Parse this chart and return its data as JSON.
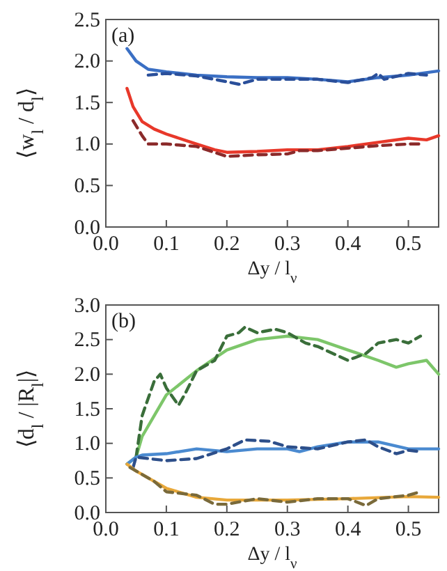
{
  "chart_data": [
    {
      "type": "line",
      "ylabel": "⟨w$_{l}$ / d$_{l}$⟩",
      "xlabel": "Δy / l$_{ν}$",
      "annotations": [
        "(a)"
      ],
      "xlim": [
        0,
        0.55
      ],
      "xticks": [
        {
          "value": 0,
          "label": "0.0"
        },
        0.1,
        0.2,
        0.3,
        0.4,
        0.5
      ],
      "ylim": [
        0,
        2.5
      ],
      "yticks": [
        {
          "value": 0,
          "label": "0.0"
        },
        0.5,
        {
          "value": 1,
          "label": "1.0"
        },
        1.5,
        {
          "value": 2,
          "label": "2.0"
        },
        2.5
      ],
      "grid": false,
      "series": [
        {
          "color": "#3a6fc4",
          "line_style": "solid",
          "x": [
            0.035,
            0.05,
            0.07,
            0.1,
            0.15,
            0.2,
            0.25,
            0.3,
            0.35,
            0.4,
            0.45,
            0.5,
            0.55
          ],
          "values": [
            2.15,
            2.0,
            1.9,
            1.87,
            1.83,
            1.81,
            1.8,
            1.8,
            1.78,
            1.75,
            1.8,
            1.83,
            1.88
          ]
        },
        {
          "color": "#2a4f9a",
          "line_style": "dashed",
          "x": [
            0.07,
            0.1,
            0.15,
            0.2,
            0.22,
            0.25,
            0.3,
            0.35,
            0.4,
            0.44,
            0.45,
            0.46,
            0.5,
            0.53
          ],
          "values": [
            1.83,
            1.85,
            1.82,
            1.75,
            1.72,
            1.78,
            1.78,
            1.78,
            1.74,
            1.8,
            1.85,
            1.78,
            1.85,
            1.83
          ]
        },
        {
          "color": "#e8382a",
          "line_style": "solid",
          "x": [
            0.035,
            0.045,
            0.06,
            0.08,
            0.1,
            0.15,
            0.18,
            0.2,
            0.25,
            0.3,
            0.35,
            0.4,
            0.45,
            0.5,
            0.53,
            0.55
          ],
          "values": [
            1.67,
            1.45,
            1.27,
            1.18,
            1.12,
            1.0,
            0.93,
            0.9,
            0.91,
            0.93,
            0.93,
            0.97,
            1.02,
            1.07,
            1.05,
            1.1
          ]
        },
        {
          "color": "#8b2a2a",
          "line_style": "dashed",
          "x": [
            0.045,
            0.06,
            0.07,
            0.1,
            0.15,
            0.2,
            0.25,
            0.3,
            0.32,
            0.35,
            0.4,
            0.45,
            0.5,
            0.52
          ],
          "values": [
            1.28,
            1.1,
            1.0,
            1.0,
            0.97,
            0.85,
            0.87,
            0.88,
            0.92,
            0.92,
            0.95,
            0.98,
            1.0,
            1.0
          ]
        }
      ]
    },
    {
      "type": "line",
      "ylabel": "⟨d$_{l}$ / |R$_{l}$|⟩",
      "xlabel": "Δy / l$_{ν}$",
      "annotations": [
        "(b)"
      ],
      "xlim": [
        0,
        0.55
      ],
      "xticks": [
        {
          "value": 0,
          "label": "0.0"
        },
        0.1,
        0.2,
        0.3,
        0.4,
        0.5
      ],
      "ylim": [
        0,
        3
      ],
      "yticks": [
        {
          "value": 0,
          "label": "0.0"
        },
        0.5,
        {
          "value": 1,
          "label": "1.0"
        },
        1.5,
        {
          "value": 2,
          "label": "2.0"
        },
        2.5,
        {
          "value": 3,
          "label": "3.0"
        }
      ],
      "grid": false,
      "series": [
        {
          "color": "#7dc66a",
          "line_style": "solid",
          "x": [
            0.035,
            0.05,
            0.06,
            0.08,
            0.1,
            0.15,
            0.2,
            0.25,
            0.3,
            0.35,
            0.4,
            0.45,
            0.48,
            0.5,
            0.53,
            0.55
          ],
          "values": [
            0.7,
            0.8,
            1.1,
            1.4,
            1.7,
            2.05,
            2.35,
            2.5,
            2.55,
            2.5,
            2.35,
            2.2,
            2.1,
            2.15,
            2.2,
            2.0
          ]
        },
        {
          "color": "#3a6e3a",
          "line_style": "dashed",
          "x": [
            0.05,
            0.06,
            0.08,
            0.09,
            0.1,
            0.12,
            0.13,
            0.15,
            0.18,
            0.2,
            0.22,
            0.23,
            0.25,
            0.28,
            0.3,
            0.33,
            0.35,
            0.4,
            0.43,
            0.45,
            0.48,
            0.5,
            0.52
          ],
          "values": [
            0.8,
            1.4,
            1.9,
            2.0,
            1.8,
            1.55,
            1.7,
            2.05,
            2.2,
            2.55,
            2.6,
            2.68,
            2.6,
            2.65,
            2.6,
            2.45,
            2.4,
            2.2,
            2.3,
            2.45,
            2.5,
            2.45,
            2.55
          ]
        },
        {
          "color": "#4a8ad0",
          "line_style": "solid",
          "x": [
            0.035,
            0.05,
            0.06,
            0.1,
            0.15,
            0.2,
            0.25,
            0.3,
            0.32,
            0.35,
            0.4,
            0.45,
            0.5,
            0.55
          ],
          "values": [
            0.7,
            0.8,
            0.83,
            0.85,
            0.92,
            0.88,
            0.92,
            0.92,
            0.88,
            0.95,
            1.02,
            1.02,
            0.92,
            0.92
          ]
        },
        {
          "color": "#2d4f8a",
          "line_style": "dashed",
          "x": [
            0.045,
            0.05,
            0.07,
            0.1,
            0.15,
            0.2,
            0.23,
            0.27,
            0.3,
            0.35,
            0.4,
            0.43,
            0.45,
            0.48,
            0.5,
            0.52
          ],
          "values": [
            0.65,
            0.8,
            0.78,
            0.75,
            0.78,
            0.92,
            1.05,
            1.03,
            0.95,
            0.92,
            1.02,
            1.05,
            0.95,
            0.85,
            0.9,
            0.88
          ]
        },
        {
          "color": "#e8a83a",
          "line_style": "solid",
          "x": [
            0.035,
            0.05,
            0.1,
            0.15,
            0.2,
            0.3,
            0.4,
            0.5,
            0.55
          ],
          "values": [
            0.7,
            0.6,
            0.35,
            0.22,
            0.18,
            0.18,
            0.2,
            0.23,
            0.22
          ]
        },
        {
          "color": "#7a6a3a",
          "line_style": "dashed",
          "x": [
            0.04,
            0.05,
            0.08,
            0.1,
            0.15,
            0.18,
            0.2,
            0.25,
            0.3,
            0.35,
            0.4,
            0.43,
            0.45,
            0.5,
            0.52
          ],
          "values": [
            0.65,
            0.6,
            0.45,
            0.3,
            0.25,
            0.12,
            0.12,
            0.2,
            0.15,
            0.2,
            0.2,
            0.1,
            0.2,
            0.25,
            0.3
          ]
        }
      ]
    }
  ]
}
